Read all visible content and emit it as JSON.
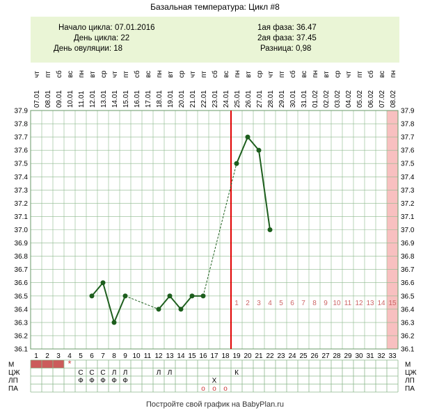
{
  "title": "Базальная температура: Цикл #8",
  "info": {
    "left": [
      {
        "label": "Начало цикла:",
        "value": "07.01.2016"
      },
      {
        "label": "День цикла:",
        "value": "22"
      },
      {
        "label": "День овуляции:",
        "value": "18"
      }
    ],
    "right": [
      {
        "label": "1ая фаза:",
        "value": "36.47"
      },
      {
        "label": "2ая фаза:",
        "value": "37.45"
      },
      {
        "label": "Разница:",
        "value": "0,98"
      }
    ]
  },
  "footer": "Постройте свой график на BabyPlan.ru",
  "colors": {
    "line": "#1d5e1d",
    "ovulation": "#e00000",
    "period": "#cc5b5b",
    "highlight": "#f8c0c0",
    "grid": "#8cb88c",
    "info_bg": "#eaf5d6",
    "phase_label": "#cc6666"
  },
  "chart_data": {
    "type": "line",
    "title": "Базальная температура: Цикл #8",
    "days": [
      1,
      2,
      3,
      4,
      5,
      6,
      7,
      8,
      9,
      10,
      11,
      12,
      13,
      14,
      15,
      16,
      17,
      18,
      19,
      20,
      21,
      22,
      23,
      24,
      25,
      26,
      27,
      28,
      29,
      30,
      31,
      32,
      33
    ],
    "dates": [
      "07.01",
      "08.01",
      "09.01",
      "10.01",
      "11.01",
      "12.01",
      "13.01",
      "14.01",
      "15.01",
      "16.01",
      "17.01",
      "18.01",
      "19.01",
      "20.01",
      "21.01",
      "22.01",
      "23.01",
      "24.01",
      "25.01",
      "26.01",
      "27.01",
      "28.01",
      "29.01",
      "30.01",
      "31.01",
      "01.02",
      "02.02",
      "03.02",
      "04.02",
      "05.02",
      "06.02",
      "07.02",
      "08.02"
    ],
    "weekdays": [
      "чт",
      "пт",
      "сб",
      "вс",
      "пн",
      "вт",
      "ср",
      "чт",
      "пт",
      "сб",
      "вс",
      "пн",
      "вт",
      "ср",
      "чт",
      "пт",
      "сб",
      "вс",
      "пн",
      "вт",
      "ср",
      "чт",
      "пт",
      "сб",
      "вс",
      "пн",
      "вт",
      "ср",
      "чт",
      "пт",
      "сб",
      "вс",
      "пн"
    ],
    "temperatures": [
      null,
      null,
      null,
      null,
      null,
      36.5,
      36.6,
      36.3,
      36.5,
      null,
      null,
      36.4,
      36.5,
      36.4,
      36.5,
      36.5,
      null,
      null,
      37.5,
      37.7,
      37.6,
      37.0,
      null,
      null,
      null,
      null,
      null,
      null,
      null,
      null,
      null,
      null,
      null
    ],
    "ylim": [
      36.1,
      37.9
    ],
    "yticks": [
      "36.1",
      "36.2",
      "36.3",
      "36.4",
      "36.5",
      "36.6",
      "36.7",
      "36.8",
      "36.9",
      "37.0",
      "37.1",
      "37.2",
      "37.3",
      "37.4",
      "37.5",
      "37.6",
      "37.7",
      "37.8",
      "37.9"
    ],
    "ovulation_day": 18,
    "highlight_day": 33,
    "luteal_labels": [
      "1",
      "2",
      "3",
      "4",
      "5",
      "6",
      "7",
      "8",
      "9",
      "10",
      "11",
      "12",
      "13",
      "14",
      "15"
    ],
    "luteal_start_day": 19,
    "rows": [
      {
        "label": "М",
        "period_days": [
          1,
          2,
          3
        ],
        "marks": {
          "4": "*"
        }
      },
      {
        "label": "ЦЖ",
        "marks": {
          "5": "С",
          "6": "С",
          "7": "С",
          "8": "Л",
          "9": "Л",
          "12": "Л",
          "13": "Л",
          "19": "К"
        }
      },
      {
        "label": "ЛП",
        "marks": {
          "5": "Ф",
          "6": "Ф",
          "7": "Ф",
          "8": "Ф",
          "9": "Ф",
          "17": "Х"
        }
      },
      {
        "label": "ПА",
        "marks": {
          "16": "o",
          "17": "o",
          "18": "o"
        }
      }
    ]
  }
}
